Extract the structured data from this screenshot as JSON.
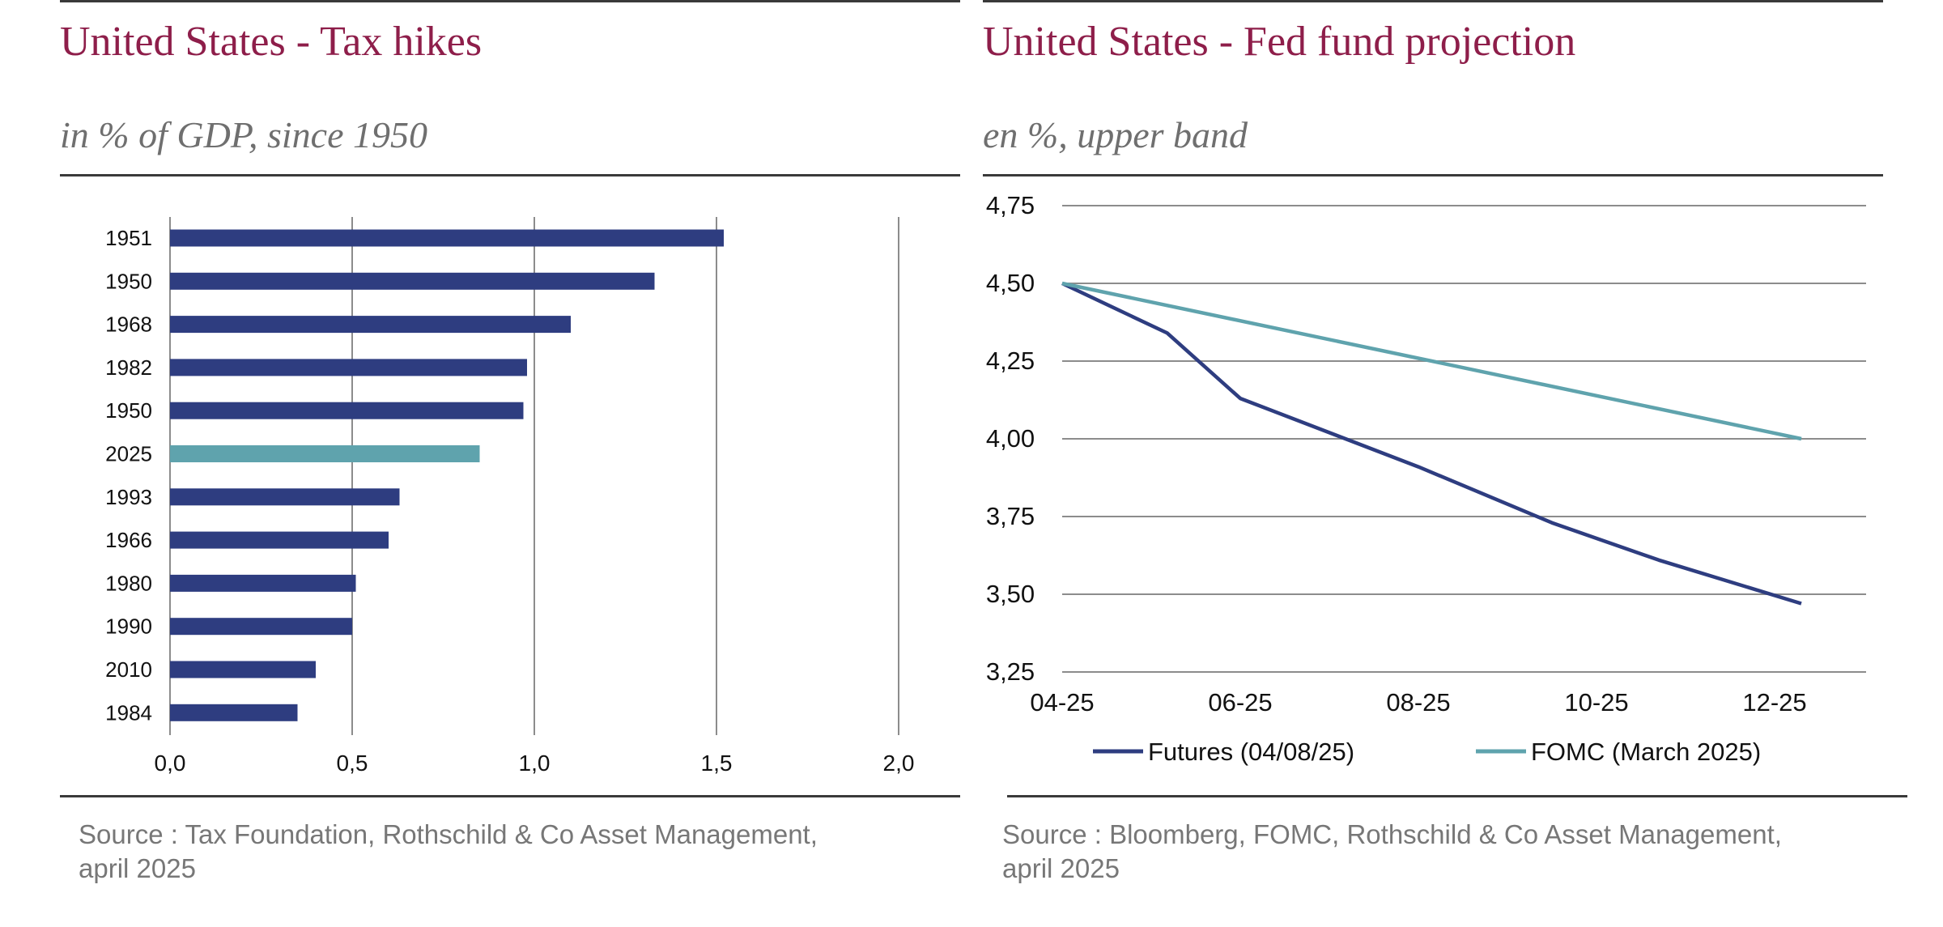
{
  "left_panel": {
    "title": "United States - Tax hikes",
    "subtitle": "in % of GDP, since 1950",
    "source_line1": "Source : Tax Foundation, Rothschild & Co Asset Management,",
    "source_line2": "april 2025"
  },
  "right_panel": {
    "title": "United States - Fed fund projection",
    "subtitle": "en %, upper band",
    "source_line1": "Source : Bloomberg, FOMC, Rothschild & Co Asset Management,",
    "source_line2": "april 2025"
  },
  "colors": {
    "title": "#8e1e4a",
    "navy": "#2e3d80",
    "teal": "#5fa3ad",
    "grid": "#8c8c8c",
    "text": "#6f6f6f"
  },
  "chart_data": [
    {
      "type": "bar",
      "orientation": "horizontal",
      "title": "United States - Tax hikes",
      "subtitle": "in % of GDP, since 1950",
      "categories": [
        "1951",
        "1950",
        "1968",
        "1982",
        "1950",
        "2025",
        "1993",
        "1966",
        "1980",
        "1990",
        "2010",
        "1984"
      ],
      "values": [
        1.52,
        1.33,
        1.1,
        0.98,
        0.97,
        0.85,
        0.63,
        0.6,
        0.51,
        0.5,
        0.4,
        0.35
      ],
      "highlight_index": 5,
      "xlim": [
        0,
        2
      ],
      "xticks": [
        "0,0",
        "0,5",
        "1,0",
        "1,5",
        "2,0"
      ],
      "xgrid": true
    },
    {
      "type": "line",
      "title": "United States - Fed fund projection",
      "subtitle": "en %, upper band",
      "x_labels": [
        "04-25",
        "06-25",
        "08-25",
        "10-25",
        "12-25"
      ],
      "ylim": [
        3.25,
        4.75
      ],
      "yticks": [
        "3,25",
        "3,50",
        "3,75",
        "4,00",
        "4,25",
        "4,50",
        "4,75"
      ],
      "ygrid": true,
      "legend_position": "bottom",
      "series": [
        {
          "name": "Futures (04/08/25)",
          "x": [
            0,
            1.18,
            2,
            4,
            5.5,
            6.7,
            8.3
          ],
          "y": [
            4.5,
            4.34,
            4.13,
            3.91,
            3.73,
            3.61,
            3.47
          ]
        },
        {
          "name": "FOMC (March 2025)",
          "x": [
            0,
            8.3
          ],
          "y": [
            4.5,
            4.0
          ]
        }
      ]
    }
  ]
}
